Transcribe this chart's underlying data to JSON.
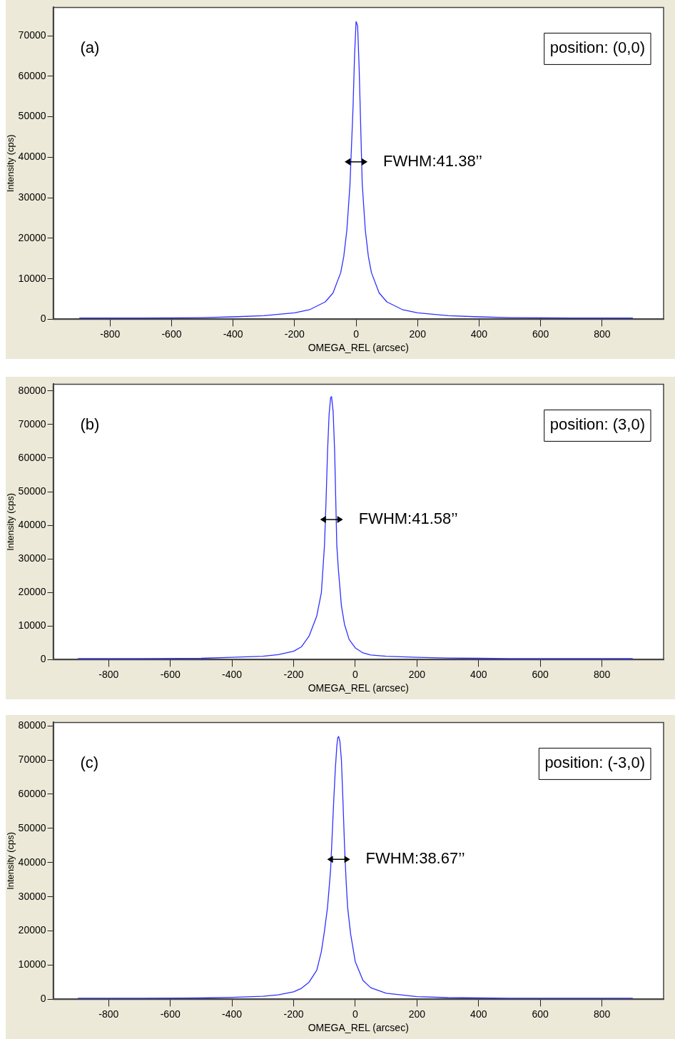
{
  "chart_data": [
    {
      "type": "line",
      "xlabel": "OMEGA_REL (arcsec)",
      "ylabel": "Intensity (cps)",
      "xlim": [
        -985,
        1000
      ],
      "xticks": [
        -800,
        -600,
        -400,
        -200,
        0,
        200,
        400,
        600,
        800
      ],
      "ylim": [
        0,
        77000
      ],
      "yticks": [
        0,
        10000,
        20000,
        30000,
        40000,
        50000,
        60000,
        70000
      ],
      "grid": false,
      "legend": false,
      "marker": "none",
      "line_style": "solid",
      "series": [
        {
          "color": "#3030ff",
          "x": [
            -900,
            -700,
            -500,
            -400,
            -300,
            -200,
            -150,
            -100,
            -75,
            -50,
            -40,
            -30,
            -20,
            -10,
            -5,
            0,
            5,
            10,
            20,
            30,
            40,
            50,
            75,
            100,
            150,
            200,
            300,
            400,
            500,
            700,
            900
          ],
          "values": [
            300,
            300,
            400,
            600,
            900,
            1600,
            2400,
            4300,
            6500,
            11500,
            15500,
            22000,
            33000,
            52000,
            65000,
            73500,
            72500,
            62000,
            33500,
            22000,
            15500,
            11500,
            6500,
            4300,
            2400,
            1600,
            900,
            600,
            400,
            300,
            300
          ]
        }
      ],
      "annotations": [
        "(a)",
        "position: (0,0)",
        "FWHM:41.38’’"
      ]
    },
    {
      "type": "line",
      "xlabel": "OMEGA_REL (arcsec)",
      "ylabel": "Intensity (cps)",
      "xlim": [
        -980,
        1000
      ],
      "xticks": [
        -800,
        -600,
        -400,
        -200,
        0,
        200,
        400,
        600,
        800
      ],
      "ylim": [
        0,
        82000
      ],
      "yticks": [
        0,
        10000,
        20000,
        30000,
        40000,
        50000,
        60000,
        70000,
        80000
      ],
      "grid": false,
      "legend": false,
      "marker": "none",
      "line_style": "solid",
      "series": [
        {
          "color": "#3030ff",
          "x": [
            -900,
            -700,
            -500,
            -400,
            -300,
            -250,
            -200,
            -175,
            -150,
            -125,
            -110,
            -100,
            -95,
            -90,
            -85,
            -80,
            -77,
            -72,
            -67,
            -60,
            -55,
            -45,
            -35,
            -20,
            0,
            25,
            50,
            100,
            200,
            300,
            400,
            500,
            700,
            900
          ],
          "values": [
            300,
            300,
            400,
            700,
            1000,
            1500,
            2500,
            3800,
            7000,
            13000,
            20000,
            34000,
            47000,
            62000,
            73000,
            78000,
            78300,
            74000,
            62000,
            34000,
            27000,
            16000,
            10500,
            6000,
            3500,
            2000,
            1400,
            1000,
            700,
            500,
            400,
            300,
            300,
            300
          ]
        }
      ],
      "annotations": [
        "(b)",
        "position: (3,0)",
        "FWHM:41.58’’"
      ]
    },
    {
      "type": "line",
      "xlabel": "OMEGA_REL (arcsec)",
      "ylabel": "Intensity (cps)",
      "xlim": [
        -980,
        1000
      ],
      "xticks": [
        -800,
        -600,
        -400,
        -200,
        0,
        200,
        400,
        600,
        800
      ],
      "ylim": [
        0,
        81000
      ],
      "yticks": [
        0,
        10000,
        20000,
        30000,
        40000,
        50000,
        60000,
        70000,
        80000
      ],
      "grid": false,
      "legend": false,
      "marker": "none",
      "line_style": "solid",
      "series": [
        {
          "color": "#3030ff",
          "x": [
            -900,
            -700,
            -500,
            -400,
            -300,
            -250,
            -200,
            -175,
            -150,
            -125,
            -110,
            -100,
            -90,
            -80,
            -75,
            -70,
            -65,
            -60,
            -57,
            -54,
            -50,
            -45,
            -40,
            -35,
            -30,
            -25,
            -15,
            0,
            25,
            50,
            100,
            200,
            300,
            400,
            500,
            700,
            900
          ],
          "values": [
            300,
            300,
            400,
            600,
            900,
            1300,
            2200,
            3200,
            5000,
            8500,
            14000,
            20000,
            27000,
            38000,
            48000,
            58000,
            67000,
            74000,
            76500,
            76900,
            75500,
            70000,
            58000,
            45000,
            35000,
            27000,
            19000,
            11000,
            5500,
            3400,
            1800,
            800,
            500,
            400,
            300,
            300,
            300
          ]
        }
      ],
      "annotations": [
        "(c)",
        "position: (-3,0)",
        "FWHM:38.67’’"
      ]
    }
  ]
}
